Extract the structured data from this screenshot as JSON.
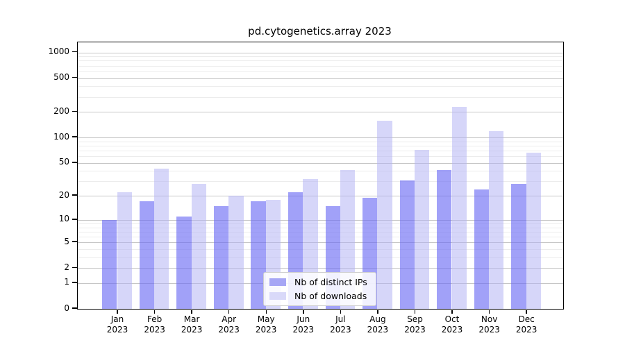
{
  "figure": {
    "title": "pd.cytogenetics.array 2023"
  },
  "chart_data": {
    "type": "bar",
    "title": "pd.cytogenetics.array 2023",
    "categories": [
      "Jan 2023",
      "Feb 2023",
      "Mar 2023",
      "Apr 2023",
      "May 2023",
      "Jun 2023",
      "Jul 2023",
      "Aug 2023",
      "Sep 2023",
      "Oct 2023",
      "Nov 2023",
      "Dec 2023"
    ],
    "series": [
      {
        "name": "Nb of distinct IPs",
        "color": "#a6a6f5",
        "values": [
          10,
          17,
          11,
          15,
          17,
          22,
          15,
          19,
          31,
          41,
          24,
          28
        ]
      },
      {
        "name": "Nb of downloads",
        "color": "#d9d9f9",
        "values": [
          22,
          43,
          28,
          20,
          18,
          32,
          41,
          157,
          71,
          230,
          120,
          66
        ]
      }
    ],
    "xlabel": "",
    "ylabel": "",
    "yscale": "log1p",
    "ylim": [
      0,
      1312
    ],
    "yticks": [
      1000,
      500,
      200,
      100,
      50,
      20,
      10,
      5,
      2,
      1,
      0
    ],
    "yticks_minor": [
      3,
      4,
      6,
      7,
      8,
      9,
      30,
      40,
      60,
      70,
      80,
      90,
      300,
      400,
      600,
      700,
      800,
      900
    ],
    "grid": "both",
    "legend_position": "lower center"
  },
  "colors": {
    "bar_distinct_ips": "#a6a6f5",
    "bar_downloads": "#d9d9f9",
    "grid_major": "#c6c6c6",
    "grid_minor": "#ececec",
    "spine": "#000000",
    "text": "#000000"
  }
}
